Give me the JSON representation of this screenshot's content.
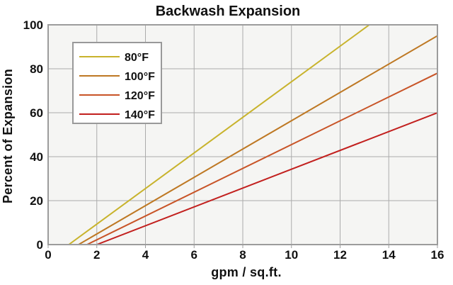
{
  "chart_data": {
    "type": "line",
    "title": "Backwash Expansion",
    "xlabel": "gpm / sq.ft.",
    "ylabel": "Percent of Expansion",
    "xlim": [
      0,
      16
    ],
    "ylim": [
      0,
      100
    ],
    "x_ticks": [
      0,
      2,
      4,
      6,
      8,
      10,
      12,
      14,
      16
    ],
    "y_ticks": [
      0,
      20,
      40,
      60,
      80,
      100
    ],
    "grid": true,
    "legend_position": "upper-left-inside",
    "series": [
      {
        "name": "80°F",
        "color": "#C8B32C",
        "points": [
          [
            0.85,
            0
          ],
          [
            13.2,
            100
          ]
        ]
      },
      {
        "name": "100°F",
        "color": "#BE7823",
        "points": [
          [
            1.25,
            0
          ],
          [
            16,
            95
          ]
        ]
      },
      {
        "name": "120°F",
        "color": "#C85427",
        "points": [
          [
            1.6,
            0
          ],
          [
            16,
            78
          ]
        ]
      },
      {
        "name": "140°F",
        "color": "#C2201E",
        "points": [
          [
            2.0,
            0
          ],
          [
            16,
            60
          ]
        ]
      }
    ],
    "colors": {
      "plot_background": "#F5F5F3",
      "grid_line": "#ABABAB",
      "plot_border": "#9C9C9C",
      "legend_border": "#999999",
      "legend_background": "#FFFFFF",
      "text": "#111111"
    }
  }
}
